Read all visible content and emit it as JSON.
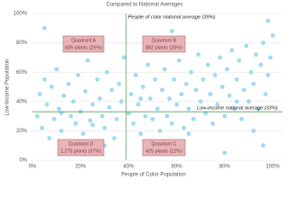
{
  "chart_data": {
    "type": "scatter",
    "title": "Compared to National Averages",
    "x_label": "People of Color Population",
    "y_label": "Low-Income Population",
    "color": "#8fd3ee",
    "grid": true,
    "xlim": [
      0,
      100
    ],
    "ylim": [
      0,
      100
    ],
    "xticks": [
      {
        "value": 0,
        "label": "0%"
      },
      {
        "value": 20,
        "label": "20%"
      },
      {
        "value": 40,
        "label": "40%"
      },
      {
        "value": 60,
        "label": "60%"
      },
      {
        "value": 80,
        "label": "80%"
      },
      {
        "value": 100,
        "label": "100%"
      }
    ],
    "yticks": [
      {
        "value": 0,
        "label": "0%"
      },
      {
        "value": 20,
        "label": "20%"
      },
      {
        "value": 40,
        "label": "40%"
      },
      {
        "value": 60,
        "label": "60%"
      },
      {
        "value": 80,
        "label": "80%"
      },
      {
        "value": 100,
        "label": "100%"
      }
    ],
    "reference_lines": [
      {
        "axis": "x",
        "value": 39,
        "label": "People of color national average (39%)"
      },
      {
        "axis": "y",
        "value": 33,
        "label": "Low-income national average (33%)"
      }
    ],
    "quadrants": [
      {
        "title": "Quadrant A",
        "text": "835 plants (25%)"
      },
      {
        "title": "Quadrant B",
        "text": "882 plants (26%)"
      },
      {
        "title": "Quadrant D",
        "text": "1,275 plants (37%)"
      },
      {
        "title": "Quadrant C",
        "text": "425 plants (12%)"
      }
    ],
    "x": [
      2,
      3,
      4,
      5,
      6,
      7,
      8,
      9,
      10,
      11,
      12,
      13,
      14,
      15,
      16,
      17,
      18,
      19,
      20,
      21,
      22,
      23,
      24,
      25,
      26,
      27,
      28,
      29,
      30,
      31,
      32,
      33,
      34,
      35,
      36,
      37,
      38,
      40,
      41,
      42,
      43,
      44,
      45,
      46,
      47,
      48,
      49,
      50,
      51,
      52,
      53,
      54,
      55,
      56,
      57,
      58,
      59,
      60,
      61,
      62,
      63,
      64,
      65,
      66,
      67,
      68,
      69,
      70,
      71,
      72,
      73,
      74,
      75,
      76,
      77,
      78,
      79,
      80,
      81,
      82,
      83,
      84,
      85,
      86,
      87,
      88,
      89,
      90,
      91,
      92,
      93,
      94,
      95,
      96,
      97,
      98,
      99,
      100,
      98,
      58,
      5,
      30,
      96,
      80,
      12,
      25,
      45,
      65,
      85,
      92
    ],
    "values": [
      30,
      45,
      22,
      55,
      38,
      15,
      50,
      28,
      62,
      35,
      20,
      44,
      8,
      52,
      30,
      40,
      25,
      58,
      33,
      18,
      47,
      68,
      27,
      38,
      12,
      55,
      42,
      30,
      22,
      60,
      36,
      48,
      15,
      28,
      52,
      40,
      70,
      32,
      45,
      25,
      58,
      38,
      18,
      50,
      30,
      65,
      42,
      28,
      55,
      35,
      20,
      48,
      62,
      30,
      42,
      25,
      55,
      38,
      68,
      45,
      22,
      52,
      35,
      60,
      28,
      48,
      72,
      40,
      55,
      32,
      65,
      45,
      25,
      58,
      38,
      70,
      50,
      30,
      62,
      44,
      75,
      35,
      55,
      68,
      28,
      48,
      78,
      40,
      60,
      52,
      72,
      35,
      65,
      80,
      45,
      58,
      70,
      85,
      95,
      88,
      90,
      10,
      10,
      5,
      32,
      24,
      42,
      18,
      40,
      20
    ]
  }
}
